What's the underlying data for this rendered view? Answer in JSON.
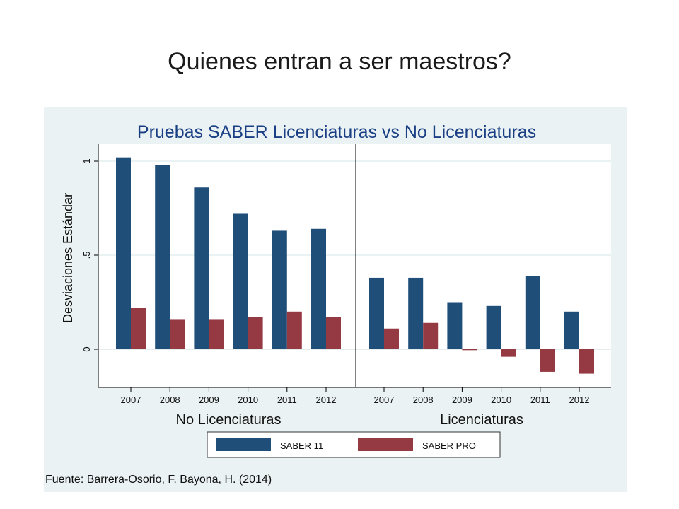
{
  "slide": {
    "title": "Quienes entran a ser maestros?"
  },
  "chart_data": {
    "type": "bar",
    "title": "Pruebas SABER Licenciaturas vs No Licenciaturas",
    "ylabel": "Desviaciones Estándar",
    "xlabel": "",
    "ylim": [
      -0.2,
      1.08
    ],
    "yticks": [
      0,
      0.5,
      1
    ],
    "ytick_labels": [
      "0",
      ".5",
      "1"
    ],
    "grid": true,
    "legend": "bottom",
    "colors": {
      "SABER 11": "#1f4e79",
      "SABER PRO": "#953a42"
    },
    "panels": [
      {
        "label": "No Licenciaturas",
        "categories": [
          "2007",
          "2008",
          "2009",
          "2010",
          "2011",
          "2012"
        ],
        "series": [
          {
            "name": "SABER 11",
            "values": [
              1.02,
              0.98,
              0.86,
              0.72,
              0.63,
              0.64
            ]
          },
          {
            "name": "SABER PRO",
            "values": [
              0.22,
              0.16,
              0.16,
              0.17,
              0.2,
              0.17
            ]
          }
        ]
      },
      {
        "label": "Licenciaturas",
        "categories": [
          "2007",
          "2008",
          "2009",
          "2010",
          "2011",
          "2012"
        ],
        "series": [
          {
            "name": "SABER 11",
            "values": [
              0.38,
              0.38,
              0.25,
              0.23,
              0.39,
              0.2
            ]
          },
          {
            "name": "SABER PRO",
            "values": [
              0.11,
              0.14,
              -0.005,
              -0.04,
              -0.12,
              -0.13
            ]
          }
        ]
      }
    ],
    "source": "Fuente: Barrera-Osorio, F. Bayona, H.  (2014)"
  }
}
